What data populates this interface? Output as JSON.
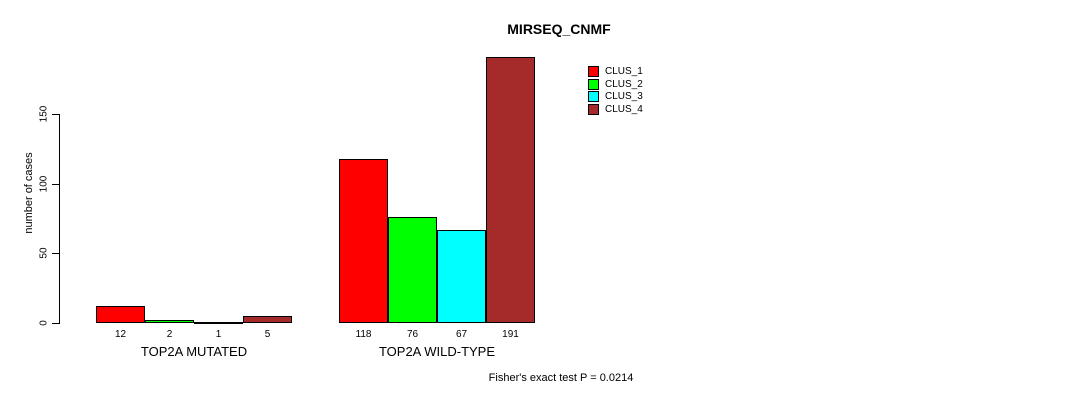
{
  "chart_data": {
    "type": "bar",
    "title": "MIRSEQ_CNMF",
    "xlabel": "",
    "ylabel": "number of cases",
    "ylim": [
      0,
      150
    ],
    "yticks": [
      0,
      50,
      100,
      150
    ],
    "grid": false,
    "legend_position": "top-right",
    "groups": [
      {
        "label": "TOP2A MUTATED",
        "values": [
          12,
          2,
          1,
          5
        ]
      },
      {
        "label": "TOP2A WILD-TYPE",
        "values": [
          118,
          76,
          67,
          191
        ]
      }
    ],
    "series": [
      {
        "name": "CLUS_1",
        "color": "#FF0000"
      },
      {
        "name": "CLUS_2",
        "color": "#00FF00"
      },
      {
        "name": "CLUS_3",
        "color": "#00FFFF"
      },
      {
        "name": "CLUS_4",
        "color": "#A52A2A"
      }
    ],
    "annotation": "Fisher's exact test P = 0.0214"
  },
  "colors": {
    "background": "#FFFFFF",
    "axis": "#000000",
    "text": "#000000"
  }
}
